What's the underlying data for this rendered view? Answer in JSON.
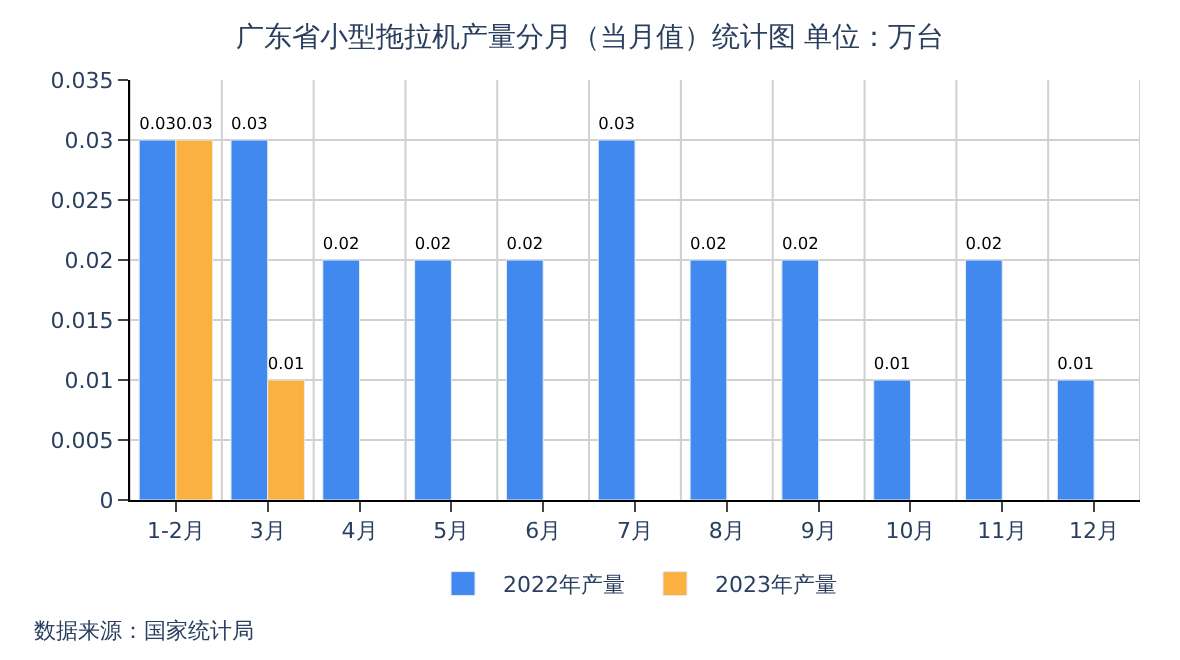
{
  "chart_data": {
    "type": "bar",
    "title": "广东省小型拖拉机产量分月（当月值）统计图 单位：万台",
    "categories": [
      "1-2月",
      "3月",
      "4月",
      "5月",
      "6月",
      "7月",
      "8月",
      "9月",
      "10月",
      "11月",
      "12月"
    ],
    "series": [
      {
        "name": "2022年产量",
        "color": "#4189ee",
        "values": [
          0.03,
          0.03,
          0.02,
          0.02,
          0.02,
          0.03,
          0.02,
          0.02,
          0.01,
          0.02,
          0.01
        ]
      },
      {
        "name": "2023年产量",
        "color": "#fbb13f",
        "values": [
          0.03,
          0.01,
          null,
          null,
          null,
          null,
          null,
          null,
          null,
          null,
          null
        ]
      }
    ],
    "ylim": [
      0,
      0.035
    ],
    "yticks": [
      0,
      0.005,
      0.01,
      0.015,
      0.02,
      0.025,
      0.03,
      0.035
    ],
    "grid": true,
    "legend": "bottom",
    "data_labels": true,
    "annotations": [
      "数据来源：国家统计局"
    ]
  }
}
